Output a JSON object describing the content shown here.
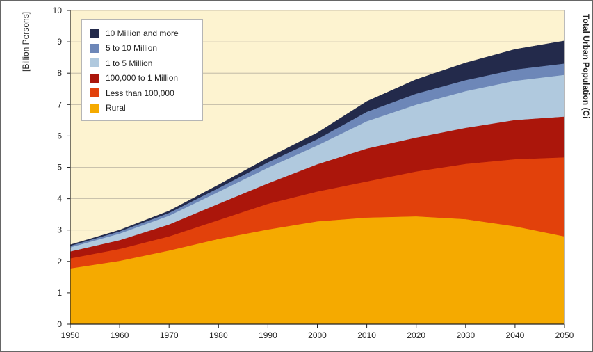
{
  "chart_data": {
    "type": "area",
    "stacked": true,
    "title": "",
    "xlabel": "",
    "ylabel": "[Billion Persons]",
    "xlim": [
      1950,
      2050
    ],
    "ylim": [
      0,
      10
    ],
    "x_ticks": [
      "1950",
      "1960",
      "1970",
      "1980",
      "1990",
      "2000",
      "2010",
      "2020",
      "2030",
      "2040",
      "2050"
    ],
    "y_ticks": [
      "0",
      "1",
      "2",
      "3",
      "4",
      "5",
      "6",
      "7",
      "8",
      "9",
      "10"
    ],
    "grid": {
      "horizontal": true,
      "vertical": false
    },
    "legend_position": "top-left",
    "background_color": "#fdf3d0",
    "x": [
      1950,
      1960,
      1970,
      1980,
      1990,
      2000,
      2010,
      2020,
      2030,
      2040,
      2050
    ],
    "series": [
      {
        "name": "Rural",
        "color": "#f5aa00",
        "values": [
          1.78,
          2.02,
          2.35,
          2.72,
          3.02,
          3.28,
          3.4,
          3.44,
          3.35,
          3.12,
          2.8
        ]
      },
      {
        "name": "Less than 100,000",
        "color": "#e2410b",
        "values": [
          0.32,
          0.38,
          0.45,
          0.6,
          0.82,
          0.95,
          1.15,
          1.43,
          1.76,
          2.14,
          2.52
        ]
      },
      {
        "name": "100,000 to 1 Million",
        "color": "#ab160b",
        "values": [
          0.22,
          0.28,
          0.38,
          0.52,
          0.65,
          0.87,
          1.05,
          1.08,
          1.15,
          1.25,
          1.3
        ]
      },
      {
        "name": "1 to 5 Million",
        "color": "#b0c9de",
        "values": [
          0.13,
          0.21,
          0.28,
          0.38,
          0.5,
          0.6,
          0.87,
          1.05,
          1.17,
          1.25,
          1.33
        ]
      },
      {
        "name": "5 to 10 Million",
        "color": "#6d87b8",
        "values": [
          0.05,
          0.07,
          0.09,
          0.12,
          0.17,
          0.2,
          0.3,
          0.35,
          0.35,
          0.36,
          0.36
        ]
      },
      {
        "name": "10 Million and more",
        "color": "#232a4b",
        "values": [
          0.03,
          0.04,
          0.06,
          0.1,
          0.14,
          0.2,
          0.33,
          0.45,
          0.55,
          0.64,
          0.72
        ]
      }
    ],
    "legend_order": [
      "10 Million and more",
      "5 to 10 Million",
      "1 to 5 Million",
      "100,000 to 1 Million",
      "Less than 100,000",
      "Rural"
    ],
    "right_edge_text": "Total Urban Population (Ci"
  }
}
